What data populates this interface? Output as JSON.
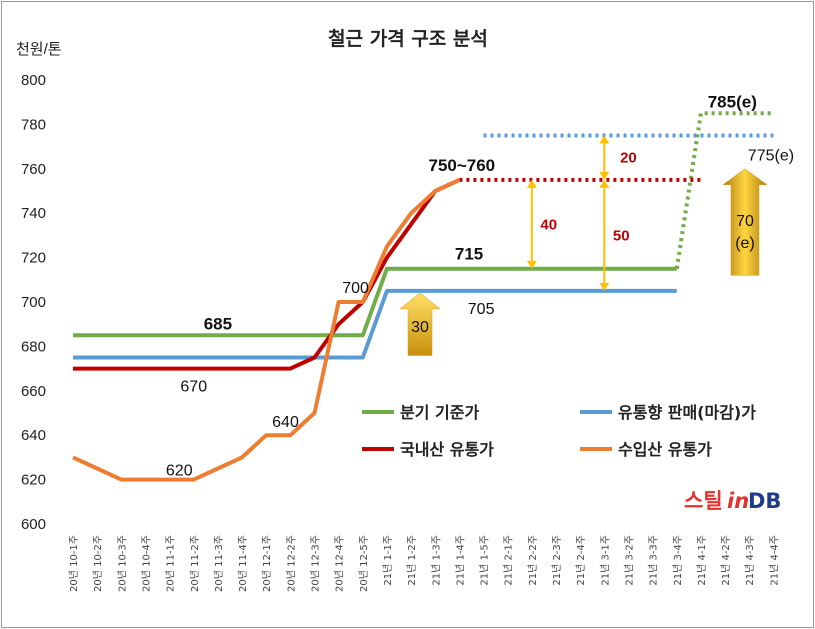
{
  "chart_data": {
    "type": "line",
    "title": "철근 가격 구조 분석",
    "ylabel": "천원/톤",
    "ylim": [
      600,
      800
    ],
    "yticks": [
      600,
      620,
      640,
      660,
      680,
      700,
      720,
      740,
      760,
      780,
      800
    ],
    "categories": [
      "20년 10-1주",
      "20년 10-2주",
      "20년 10-3주",
      "20년 10-4주",
      "20년 11-1주",
      "20년 11-2주",
      "20년 11-3주",
      "20년 11-4주",
      "20년 12-1주",
      "20년 12-2주",
      "20년 12-3주",
      "20년 12-4주",
      "20년 12-5주",
      "21년 1-1주",
      "21년 1-2주",
      "21년 1-3주",
      "21년 1-4주",
      "21년 1-5주",
      "21년 2-1주",
      "21년 2-2주",
      "21년 2-3주",
      "21년 2-4주",
      "21년 3-1주",
      "21년 3-2주",
      "21년 3-3주",
      "21년 3-4주",
      "21년 4-1주",
      "21년 4-2주",
      "21년 4-3주",
      "21년 4-4주"
    ],
    "series": [
      {
        "name": "분기 기준가",
        "color": "#70ad47",
        "values": [
          685,
          685,
          685,
          685,
          685,
          685,
          685,
          685,
          685,
          685,
          685,
          685,
          685,
          715,
          715,
          715,
          715,
          715,
          715,
          715,
          715,
          715,
          715,
          715,
          715,
          715,
          null,
          null,
          null,
          null
        ],
        "dotted_values": [
          null,
          null,
          null,
          null,
          null,
          null,
          null,
          null,
          null,
          null,
          null,
          null,
          null,
          null,
          null,
          null,
          null,
          null,
          null,
          null,
          null,
          null,
          null,
          null,
          null,
          715,
          785,
          785,
          785,
          785
        ]
      },
      {
        "name": "유통향 판매(마감)가",
        "color": "#5b9bd5",
        "values": [
          675,
          675,
          675,
          675,
          675,
          675,
          675,
          675,
          675,
          675,
          675,
          675,
          675,
          705,
          705,
          705,
          705,
          705,
          705,
          705,
          705,
          705,
          705,
          705,
          705,
          705,
          null,
          null,
          null,
          null
        ],
        "dotted_values": [
          null,
          null,
          null,
          null,
          null,
          null,
          null,
          null,
          null,
          null,
          null,
          null,
          null,
          null,
          null,
          null,
          null,
          775,
          775,
          775,
          775,
          775,
          775,
          775,
          775,
          775,
          775,
          775,
          775,
          775
        ]
      },
      {
        "name": "국내산 유통가",
        "color": "#c00000",
        "values": [
          670,
          670,
          670,
          670,
          670,
          670,
          670,
          670,
          670,
          670,
          675,
          690,
          700,
          720,
          735,
          750,
          755,
          null,
          null,
          null,
          null,
          null,
          null,
          null,
          null,
          null,
          null,
          null,
          null,
          null
        ],
        "dotted_values": [
          null,
          null,
          null,
          null,
          null,
          null,
          null,
          null,
          null,
          null,
          null,
          null,
          null,
          null,
          null,
          null,
          755,
          755,
          755,
          755,
          755,
          755,
          755,
          755,
          755,
          755,
          755,
          null,
          null,
          null
        ]
      },
      {
        "name": "수입산 유통가",
        "color": "#ed7d31",
        "values": [
          630,
          625,
          620,
          620,
          620,
          620,
          625,
          630,
          640,
          640,
          650,
          700,
          700,
          725,
          740,
          750,
          755,
          null,
          null,
          null,
          null,
          null,
          null,
          null,
          null,
          null,
          null,
          null,
          null,
          null
        ]
      }
    ],
    "annotations": {
      "a685": "685",
      "a670": "670",
      "a620": "620",
      "a640": "640",
      "a700": "700",
      "a715": "715",
      "a705": "705",
      "a750_760": "750~760",
      "a785e": "785(e)",
      "a775e": "775(e)",
      "d40": "40",
      "d50": "50",
      "d20": "20",
      "arrow30": "30",
      "arrow70": "70",
      "arrow70e": "(e)"
    },
    "legend_position": "lower-right",
    "grid": false
  },
  "watermark": {
    "part1": "스틸",
    "part2": "in",
    "part3": "DB"
  }
}
